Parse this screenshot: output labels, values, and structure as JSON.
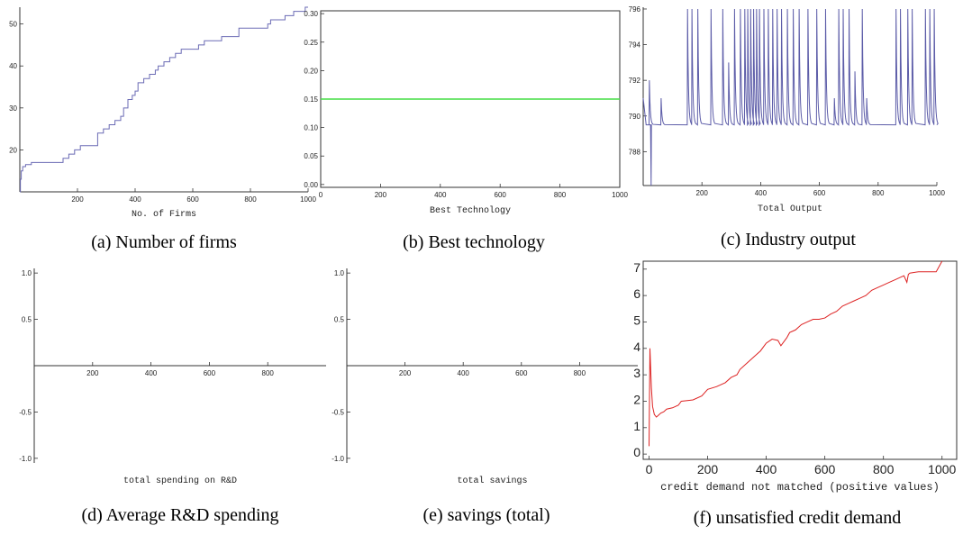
{
  "chart_data": [
    {
      "id": "a",
      "type": "line",
      "caption": "(a) Number of firms",
      "xlabel": "No. of Firms",
      "ylabel": "",
      "xlim": [
        0,
        1000
      ],
      "ylim": [
        10,
        54
      ],
      "xticks": [
        200,
        400,
        600,
        800,
        1000
      ],
      "yticks": [
        20,
        30,
        40,
        50
      ],
      "color": "#6b6bb5",
      "step": true,
      "series": [
        {
          "x": [
            0,
            2,
            5,
            10,
            20,
            40,
            80,
            130,
            150,
            170,
            190,
            210,
            260,
            270,
            290,
            310,
            330,
            350,
            360,
            375,
            390,
            400,
            410,
            430,
            450,
            470,
            480,
            490,
            500,
            520,
            540,
            560,
            580,
            620,
            640,
            660,
            700,
            760,
            800,
            840,
            860,
            870,
            880,
            920,
            950,
            970,
            990,
            1000
          ],
          "y": [
            10,
            13,
            15,
            16,
            16.5,
            17,
            17,
            17,
            18,
            19,
            20,
            21,
            21,
            24,
            25,
            26,
            27,
            28,
            30,
            32,
            33,
            34,
            36,
            37,
            38,
            39,
            40,
            40,
            41,
            42,
            43,
            44,
            44,
            45,
            46,
            46,
            47,
            49,
            49,
            49,
            50,
            51,
            51,
            52,
            53,
            53,
            54,
            54
          ]
        }
      ]
    },
    {
      "id": "b",
      "type": "line",
      "caption": "(b) Best technology",
      "xlabel": "Best Technology",
      "ylabel": "",
      "xlim": [
        0,
        1000
      ],
      "ylim": [
        -0.005,
        0.305
      ],
      "xticks": [
        0,
        200,
        400,
        600,
        800,
        1000
      ],
      "yticks": [
        0.0,
        0.05,
        0.1,
        0.15,
        0.2,
        0.25,
        0.3
      ],
      "ytick_labels": [
        "0.00",
        "0.05",
        "0.10",
        "0.15",
        "0.20",
        "0.25",
        "0.30"
      ],
      "color": "#44dd44",
      "series": [
        {
          "x": [
            0,
            1000
          ],
          "y": [
            0.15,
            0.15
          ]
        }
      ]
    },
    {
      "id": "c",
      "type": "line",
      "caption": "(c) Industry output",
      "xlabel": "Total Output",
      "ylabel": "",
      "xlim": [
        0,
        1000
      ],
      "ylim": [
        786.1,
        796.1
      ],
      "xticks": [
        200,
        400,
        600,
        800,
        1000
      ],
      "yticks": [
        788,
        790,
        792,
        794,
        796
      ],
      "color": "#5c5ca8",
      "baseline": 789.5,
      "spikes_x": [
        20,
        60,
        150,
        165,
        185,
        230,
        270,
        290,
        310,
        330,
        345,
        355,
        365,
        375,
        385,
        395,
        410,
        425,
        440,
        455,
        470,
        490,
        510,
        530,
        560,
        590,
        620,
        650,
        665,
        680,
        700,
        720,
        745,
        760,
        860,
        875,
        900,
        915,
        960,
        975,
        990
      ],
      "spikes_peak": [
        792,
        791,
        796,
        796,
        796,
        796,
        796,
        793,
        796,
        796,
        796,
        796,
        796,
        796,
        796,
        796,
        796,
        796,
        796,
        796,
        796,
        796,
        796,
        796,
        796,
        796,
        796,
        791,
        796,
        796,
        796,
        792.5,
        796,
        791,
        796,
        796,
        796,
        796,
        796,
        796,
        796
      ],
      "dip_x": 27,
      "dip_y": 786.1
    },
    {
      "id": "d",
      "type": "line",
      "caption": "(d) Average R&D spending",
      "xlabel": "total spending on R&D",
      "ylabel": "",
      "xlim": [
        0,
        1000
      ],
      "ylim": [
        -1.05,
        1.05
      ],
      "xticks": [
        200,
        400,
        600,
        800
      ],
      "yticks": [
        -1.0,
        -0.5,
        0.5,
        1.0
      ],
      "ytick_labels": [
        "-1.0",
        "-0.5",
        "0.5",
        "1.0"
      ],
      "series": []
    },
    {
      "id": "e",
      "type": "line",
      "caption": "(e) savings (total)",
      "xlabel": "total savings",
      "ylabel": "",
      "xlim": [
        0,
        1000
      ],
      "ylim": [
        -1.05,
        1.05
      ],
      "xticks": [
        200,
        400,
        600,
        800
      ],
      "yticks": [
        -1.0,
        -0.5,
        0.5,
        1.0
      ],
      "ytick_labels": [
        "-1.0",
        "-0.5",
        "0.5",
        "1.0"
      ],
      "series": []
    },
    {
      "id": "f",
      "type": "line",
      "caption": "(f) unsatisfied credit demand",
      "xlabel": "credit demand not matched (positive values)",
      "ylabel": "",
      "xlim": [
        -20,
        1050
      ],
      "ylim": [
        -0.2,
        7.3
      ],
      "xticks": [
        0,
        200,
        400,
        600,
        800,
        1000
      ],
      "yticks": [
        0,
        1,
        2,
        3,
        4,
        5,
        6,
        7
      ],
      "color": "#dd2222",
      "series": [
        {
          "x": [
            0,
            3,
            8,
            12,
            18,
            25,
            30,
            40,
            50,
            60,
            80,
            100,
            110,
            150,
            180,
            200,
            230,
            260,
            280,
            300,
            310,
            330,
            350,
            370,
            380,
            400,
            420,
            440,
            450,
            470,
            480,
            500,
            520,
            540,
            560,
            580,
            600,
            620,
            640,
            660,
            680,
            700,
            720,
            740,
            760,
            780,
            800,
            820,
            840,
            860,
            870,
            880,
            885,
            890,
            920,
            940,
            960,
            980,
            990,
            1000
          ],
          "y": [
            0.3,
            4.0,
            2.5,
            1.8,
            1.5,
            1.4,
            1.45,
            1.55,
            1.6,
            1.7,
            1.75,
            1.85,
            2.0,
            2.05,
            2.2,
            2.45,
            2.55,
            2.7,
            2.9,
            3.0,
            3.2,
            3.4,
            3.6,
            3.8,
            3.9,
            4.2,
            4.35,
            4.3,
            4.1,
            4.4,
            4.6,
            4.7,
            4.9,
            5.0,
            5.1,
            5.1,
            5.15,
            5.3,
            5.4,
            5.6,
            5.7,
            5.8,
            5.9,
            6.0,
            6.2,
            6.3,
            6.4,
            6.5,
            6.6,
            6.7,
            6.75,
            6.5,
            6.8,
            6.85,
            6.9,
            6.9,
            6.9,
            6.9,
            7.1,
            7.3
          ]
        }
      ]
    }
  ]
}
